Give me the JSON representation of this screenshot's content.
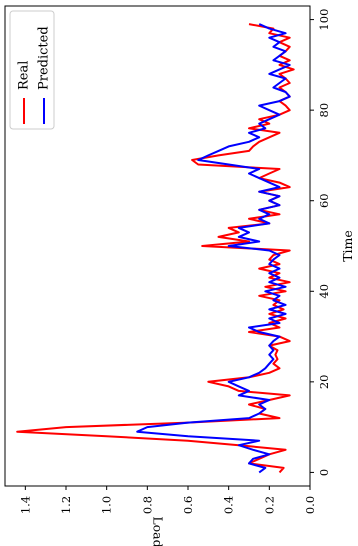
{
  "chart_data": {
    "type": "line",
    "orientation": "rotated-90-clockwise",
    "xlabel": "Time",
    "ylabel": "Load",
    "xlim": [
      -3,
      103
    ],
    "ylim": [
      0,
      1.5
    ],
    "x_ticks": [
      0,
      20,
      40,
      60,
      80,
      100
    ],
    "y_ticks": [
      0.0,
      0.2,
      0.4,
      0.6,
      0.8,
      1.0,
      1.2,
      1.4
    ],
    "x_tick_labels": [
      "0",
      "20",
      "40",
      "60",
      "80",
      "100"
    ],
    "y_tick_labels": [
      "0.0",
      "0.2",
      "0.4",
      "0.6",
      "0.8",
      "1.0",
      "1.2",
      "1.4"
    ],
    "grid": false,
    "legend_position": "top-left",
    "series": [
      {
        "name": "Real",
        "color": "#ff0000",
        "x": [
          0,
          1,
          2,
          3,
          4,
          5,
          6,
          7,
          8,
          9,
          10,
          11,
          12,
          13,
          14,
          15,
          16,
          17,
          18,
          19,
          20,
          21,
          22,
          23,
          24,
          25,
          26,
          27,
          28,
          29,
          30,
          31,
          32,
          33,
          34,
          35,
          36,
          37,
          38,
          39,
          40,
          41,
          42,
          43,
          44,
          45,
          46,
          47,
          48,
          49,
          50,
          51,
          52,
          53,
          54,
          55,
          56,
          57,
          58,
          59,
          60,
          61,
          62,
          63,
          64,
          65,
          66,
          67,
          68,
          69,
          70,
          71,
          72,
          73,
          74,
          75,
          76,
          77,
          78,
          79,
          80,
          81,
          82,
          83,
          84,
          85,
          86,
          87,
          88,
          89,
          90,
          91,
          92,
          93,
          94,
          95,
          96,
          97,
          98,
          99
        ],
        "values": [
          0.15,
          0.13,
          0.3,
          0.25,
          0.2,
          0.12,
          0.35,
          0.6,
          1.0,
          1.44,
          1.2,
          0.6,
          0.15,
          0.25,
          0.22,
          0.3,
          0.2,
          0.1,
          0.35,
          0.4,
          0.5,
          0.3,
          0.2,
          0.15,
          0.18,
          0.16,
          0.17,
          0.16,
          0.2,
          0.1,
          0.15,
          0.3,
          0.15,
          0.2,
          0.12,
          0.2,
          0.13,
          0.18,
          0.15,
          0.25,
          0.12,
          0.22,
          0.1,
          0.2,
          0.15,
          0.25,
          0.15,
          0.2,
          0.18,
          0.1,
          0.53,
          0.3,
          0.45,
          0.35,
          0.4,
          0.2,
          0.3,
          0.15,
          0.25,
          0.15,
          0.2,
          0.15,
          0.25,
          0.1,
          0.15,
          0.25,
          0.2,
          0.15,
          0.55,
          0.58,
          0.45,
          0.3,
          0.28,
          0.25,
          0.2,
          0.15,
          0.3,
          0.2,
          0.25,
          0.15,
          0.1,
          0.12,
          0.15,
          0.1,
          0.12,
          0.15,
          0.1,
          0.12,
          0.15,
          0.08,
          0.15,
          0.1,
          0.15,
          0.12,
          0.1,
          0.15,
          0.1,
          0.2,
          0.18,
          0.3
        ]
      },
      {
        "name": "Predicted",
        "color": "#0000ff",
        "x": [
          0,
          1,
          2,
          3,
          4,
          5,
          6,
          7,
          8,
          9,
          10,
          11,
          12,
          13,
          14,
          15,
          16,
          17,
          18,
          19,
          20,
          21,
          22,
          23,
          24,
          25,
          26,
          27,
          28,
          29,
          30,
          31,
          32,
          33,
          34,
          35,
          36,
          37,
          38,
          39,
          40,
          41,
          42,
          43,
          44,
          45,
          46,
          47,
          48,
          49,
          50,
          51,
          52,
          53,
          54,
          55,
          56,
          57,
          58,
          59,
          60,
          61,
          62,
          63,
          64,
          65,
          66,
          67,
          68,
          69,
          70,
          71,
          72,
          73,
          74,
          75,
          76,
          77,
          78,
          79,
          80,
          81,
          82,
          83,
          84,
          85,
          86,
          87,
          88,
          89,
          90,
          91,
          92,
          93,
          94,
          95,
          96,
          97,
          98,
          99
        ],
        "values": [
          0.25,
          0.22,
          0.3,
          0.28,
          0.2,
          0.28,
          0.35,
          0.25,
          0.6,
          0.85,
          0.8,
          0.6,
          0.3,
          0.25,
          0.22,
          0.25,
          0.2,
          0.35,
          0.3,
          0.35,
          0.4,
          0.3,
          0.25,
          0.22,
          0.2,
          0.18,
          0.2,
          0.18,
          0.2,
          0.18,
          0.15,
          0.25,
          0.3,
          0.15,
          0.2,
          0.12,
          0.2,
          0.12,
          0.18,
          0.15,
          0.22,
          0.12,
          0.2,
          0.15,
          0.2,
          0.15,
          0.2,
          0.18,
          0.15,
          0.2,
          0.4,
          0.25,
          0.35,
          0.3,
          0.35,
          0.2,
          0.25,
          0.2,
          0.25,
          0.15,
          0.2,
          0.15,
          0.25,
          0.15,
          0.2,
          0.25,
          0.3,
          0.25,
          0.4,
          0.55,
          0.5,
          0.45,
          0.4,
          0.3,
          0.25,
          0.3,
          0.22,
          0.25,
          0.2,
          0.15,
          0.2,
          0.25,
          0.15,
          0.1,
          0.12,
          0.18,
          0.15,
          0.12,
          0.2,
          0.15,
          0.1,
          0.18,
          0.15,
          0.12,
          0.18,
          0.15,
          0.2,
          0.12,
          0.2,
          0.25
        ]
      }
    ]
  }
}
